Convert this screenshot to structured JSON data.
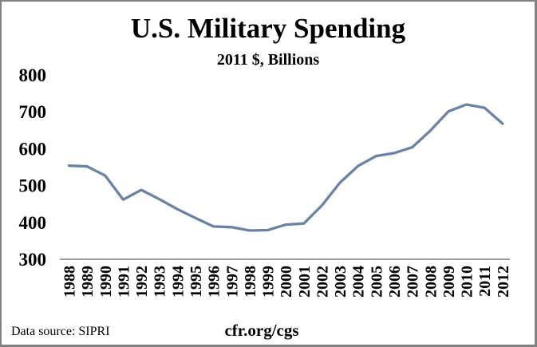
{
  "frame": {
    "background": "#FFFFFF",
    "border_color": "#808080"
  },
  "chart_data": {
    "type": "line",
    "title": "U.S. Military Spending",
    "subtitle": "2011 $, Billions",
    "x": [
      1988,
      1989,
      1990,
      1991,
      1992,
      1993,
      1994,
      1995,
      1996,
      1997,
      1998,
      1999,
      2000,
      2001,
      2002,
      2003,
      2004,
      2005,
      2006,
      2007,
      2008,
      2009,
      2010,
      2011,
      2012
    ],
    "series": [
      {
        "name": "U.S. military spending (2011 $, billions)",
        "color": "#6B82A6",
        "values": [
          554,
          552,
          527,
          462,
          488,
          463,
          436,
          412,
          389,
          387,
          378,
          379,
          394,
          397,
          446,
          508,
          553,
          580,
          588,
          604,
          649,
          701,
          720,
          711,
          668
        ]
      }
    ],
    "ylim": [
      300,
      800
    ],
    "yticks": [
      300,
      400,
      500,
      600,
      700,
      800
    ],
    "xlabel": "",
    "ylabel": "",
    "grid": false,
    "legend": "none",
    "axis_color": "#7F7F7F",
    "text_color": "#000000"
  },
  "footer": {
    "source": "Data source: SIPRI",
    "site": "cfr.org/cgs"
  }
}
